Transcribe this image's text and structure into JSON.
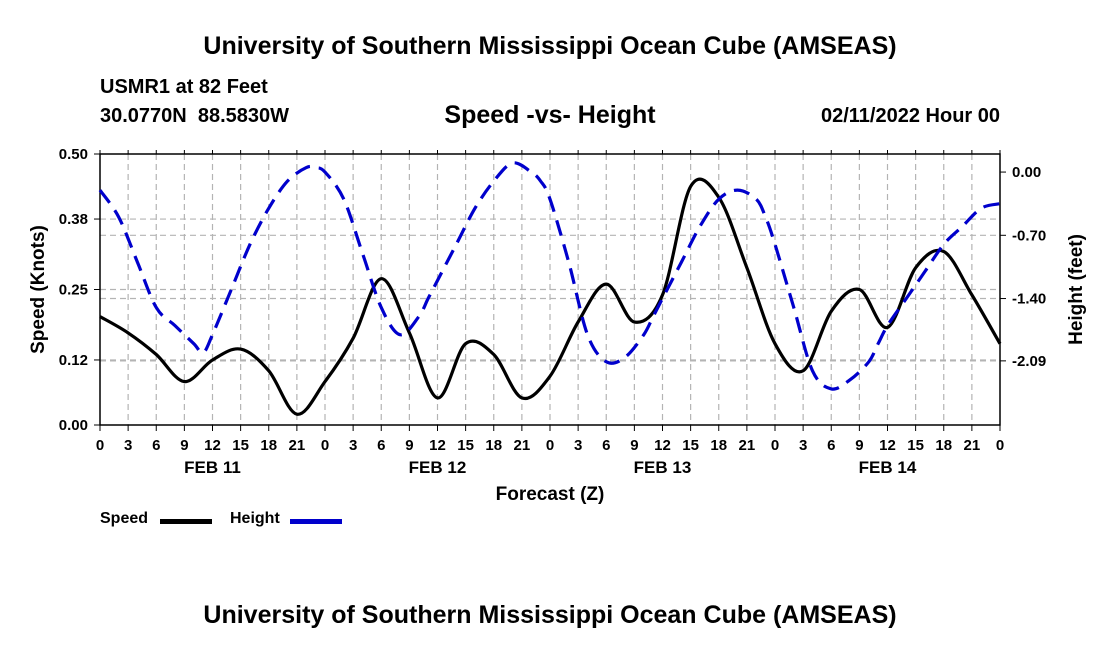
{
  "title": "University of Southern Mississippi Ocean Cube (AMSEAS)",
  "footer_title": "University of Southern Mississippi Ocean Cube (AMSEAS)",
  "station": "USMR1 at 82 Feet",
  "coordinates": "30.0770N  88.5830W",
  "subtitle": "Speed -vs- Height",
  "datetime": "02/11/2022 Hour 00",
  "colors": {
    "speed": "#000000",
    "height": "#0000cc",
    "grid": "#b4b4b4"
  },
  "chart_data": {
    "type": "line",
    "title": "Speed -vs- Height",
    "xlabel": "Forecast (Z)",
    "ylabel": "Speed (Knots)",
    "y2label": "Height (feet)",
    "x_range_hours": [
      0,
      96
    ],
    "x_tick_labels": [
      "0",
      "3",
      "6",
      "9",
      "12",
      "15",
      "18",
      "21",
      "0",
      "3",
      "6",
      "9",
      "12",
      "15",
      "18",
      "21",
      "0",
      "3",
      "6",
      "9",
      "12",
      "15",
      "18",
      "21",
      "0",
      "3",
      "6",
      "9",
      "12",
      "15",
      "18",
      "21",
      "0"
    ],
    "date_labels": [
      {
        "label": "FEB 11",
        "hour": 12
      },
      {
        "label": "FEB 12",
        "hour": 36
      },
      {
        "label": "FEB 13",
        "hour": 60
      },
      {
        "label": "FEB 14",
        "hour": 84
      }
    ],
    "ylim": [
      0,
      0.5
    ],
    "y_ticks": [
      0.0,
      0.12,
      0.25,
      0.38,
      0.5
    ],
    "y_tick_labels": [
      "0.00",
      "0.12",
      "0.25",
      "0.38",
      "0.50"
    ],
    "y2lim": [
      -2.8,
      0.2
    ],
    "y2_ticks": [
      0.0,
      -0.7,
      -1.4,
      -2.09
    ],
    "y2_tick_labels": [
      "0.00",
      "-0.70",
      "-1.40",
      "-2.09"
    ],
    "grid": true,
    "legend": [
      {
        "label": "Speed",
        "series": "speed"
      },
      {
        "label": "Height",
        "series": "height"
      }
    ],
    "series": [
      {
        "name": "Speed",
        "axis": "left",
        "style": "solid",
        "x": [
          0,
          3,
          6,
          9,
          12,
          15,
          18,
          21,
          24,
          27,
          30,
          33,
          36,
          39,
          42,
          45,
          48,
          51,
          54,
          57,
          60,
          63,
          66,
          69,
          72,
          75,
          78,
          81,
          84,
          87,
          90,
          93,
          96
        ],
        "values": [
          0.2,
          0.17,
          0.13,
          0.08,
          0.12,
          0.14,
          0.1,
          0.02,
          0.08,
          0.16,
          0.27,
          0.17,
          0.05,
          0.15,
          0.13,
          0.05,
          0.09,
          0.19,
          0.26,
          0.19,
          0.24,
          0.44,
          0.42,
          0.29,
          0.15,
          0.1,
          0.21,
          0.25,
          0.18,
          0.29,
          0.32,
          0.24,
          0.15
        ]
      },
      {
        "name": "Height",
        "axis": "right",
        "style": "dashed",
        "x": [
          0,
          2,
          4,
          6,
          8,
          10,
          11,
          12,
          14,
          16,
          18,
          20,
          22,
          23,
          24,
          26,
          28,
          30,
          32,
          34,
          35,
          36,
          38,
          40,
          42,
          44,
          46,
          47,
          48,
          50,
          52,
          54,
          56,
          58,
          59,
          60,
          62,
          64,
          66,
          68,
          70,
          71,
          72,
          74,
          76,
          78,
          80,
          82,
          83,
          84,
          86,
          88,
          90,
          92,
          94,
          96
        ],
        "values": [
          -0.2,
          -0.5,
          -1.0,
          -1.5,
          -1.7,
          -1.9,
          -2.0,
          -1.8,
          -1.3,
          -0.8,
          -0.4,
          -0.1,
          0.05,
          0.05,
          0.0,
          -0.3,
          -0.9,
          -1.5,
          -1.8,
          -1.6,
          -1.4,
          -1.2,
          -0.8,
          -0.4,
          -0.1,
          0.1,
          0.0,
          -0.1,
          -0.3,
          -1.0,
          -1.8,
          -2.1,
          -2.05,
          -1.8,
          -1.6,
          -1.4,
          -1.0,
          -0.6,
          -0.3,
          -0.2,
          -0.3,
          -0.5,
          -0.8,
          -1.5,
          -2.2,
          -2.4,
          -2.3,
          -2.1,
          -1.9,
          -1.7,
          -1.4,
          -1.1,
          -0.8,
          -0.6,
          -0.4,
          -0.35
        ]
      }
    ]
  }
}
